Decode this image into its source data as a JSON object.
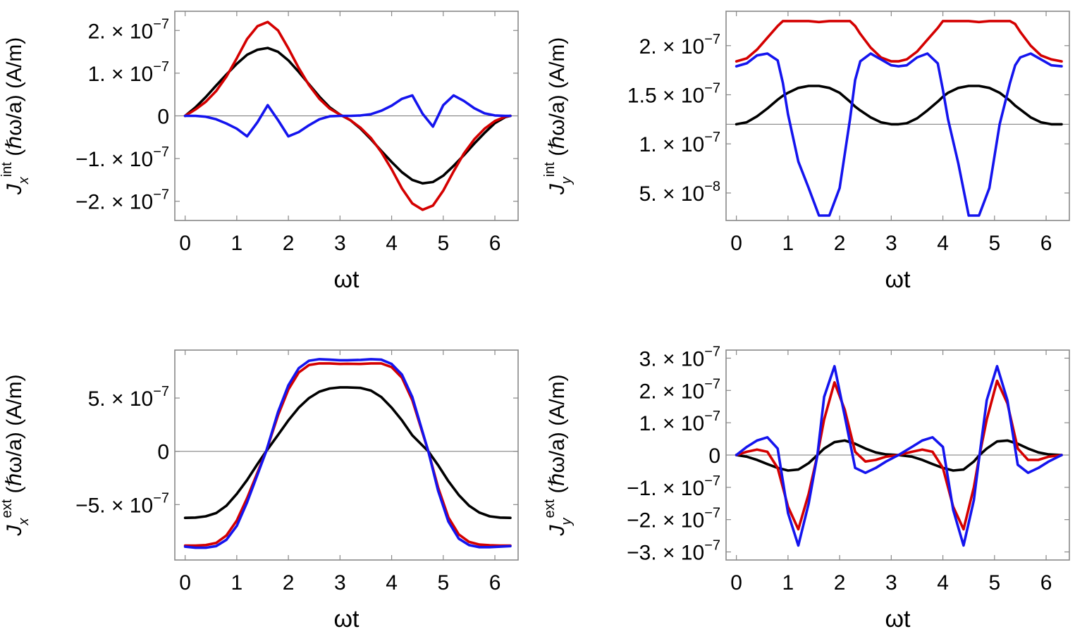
{
  "colors": {
    "red": "#d40000",
    "blue": "#1414ee",
    "black": "#000000"
  },
  "chart_data": [
    {
      "id": "jx-int",
      "type": "line",
      "xlabel": "ωt",
      "ylabel": {
        "symbol": "J",
        "sub": "x",
        "sup": "int",
        "rest": " (ℏω/a) (A/m)"
      },
      "xlim": [
        -0.2,
        6.45
      ],
      "ylim": [
        -2.45e-07,
        2.45e-07
      ],
      "xticks": [
        0,
        1,
        2,
        3,
        4,
        5,
        6
      ],
      "xtick_labels": [
        "0",
        "1",
        "2",
        "3",
        "4",
        "5",
        "6"
      ],
      "yticks": [
        {
          "v": 2e-07,
          "label": "2. × 10",
          "exp": "−7"
        },
        {
          "v": 1e-07,
          "label": "1. × 10",
          "exp": "−7"
        },
        {
          "v": 0,
          "label": "0",
          "exp": ""
        },
        {
          "v": -1e-07,
          "label": "−1. × 10",
          "exp": "−7"
        },
        {
          "v": -2e-07,
          "label": "−2. × 10",
          "exp": "−7"
        }
      ],
      "baseline": 0,
      "x": [
        0,
        0.2,
        0.4,
        0.6,
        0.8,
        1.0,
        1.2,
        1.4,
        1.6,
        1.8,
        2.0,
        2.2,
        2.4,
        2.6,
        2.8,
        3.0,
        3.2,
        3.4,
        3.6,
        3.8,
        4.0,
        4.2,
        4.4,
        4.6,
        4.8,
        5.0,
        5.2,
        5.4,
        5.6,
        5.8,
        6.0,
        6.2,
        6.3
      ],
      "series": [
        {
          "name": "black",
          "color": "#000000",
          "values": [
            0,
            2e-08,
            4.4e-08,
            7.1e-08,
            9.7e-08,
            1.22e-07,
            1.43e-07,
            1.55e-07,
            1.59e-07,
            1.5e-07,
            1.3e-07,
            1.03e-07,
            7.4e-08,
            4.5e-08,
            2e-08,
            3e-09,
            -1e-08,
            -3e-08,
            -5.5e-08,
            -8.2e-08,
            -1.08e-07,
            -1.32e-07,
            -1.5e-07,
            -1.58e-07,
            -1.55e-07,
            -1.4e-07,
            -1.17e-07,
            -9.2e-08,
            -6.5e-08,
            -4e-08,
            -1.7e-08,
            -3e-09,
            0
          ]
        },
        {
          "name": "red",
          "color": "#d40000",
          "values": [
            0,
            1.5e-08,
            3.3e-08,
            5.8e-08,
            9.2e-08,
            1.35e-07,
            1.8e-07,
            2.1e-07,
            2.2e-07,
            2e-07,
            1.58e-07,
            1.12e-07,
            7.2e-08,
            4e-08,
            1.7e-08,
            3e-09,
            -1e-08,
            -2.8e-08,
            -5.2e-08,
            -8.5e-08,
            -1.25e-07,
            -1.7e-07,
            -2.05e-07,
            -2.2e-07,
            -2.1e-07,
            -1.75e-07,
            -1.3e-07,
            -8.8e-08,
            -5.5e-08,
            -3e-08,
            -1.2e-08,
            -2e-09,
            0
          ]
        },
        {
          "name": "blue",
          "color": "#1414ee",
          "values": [
            0,
            0.0,
            -2e-09,
            -8e-09,
            -1.8e-08,
            -3e-08,
            -4.8e-08,
            -1.5e-08,
            2.5e-08,
            -1e-08,
            -4.8e-08,
            -3.8e-08,
            -2.2e-08,
            -8e-09,
            -1e-09,
            0,
            0,
            1e-09,
            4e-09,
            1.2e-08,
            2.4e-08,
            4e-08,
            4.8e-08,
            5e-09,
            -2.5e-08,
            2.5e-08,
            4.8e-08,
            3.5e-08,
            1.8e-08,
            6e-09,
            1e-09,
            0,
            0
          ]
        }
      ]
    },
    {
      "id": "jy-int",
      "type": "line",
      "xlabel": "ωt",
      "ylabel": {
        "symbol": "J",
        "sub": "y",
        "sup": "int",
        "rest": " (ℏω/a) (A/m)"
      },
      "xlim": [
        -0.2,
        6.45
      ],
      "ylim": [
        2.2e-08,
        2.35e-07
      ],
      "xticks": [
        0,
        1,
        2,
        3,
        4,
        5,
        6
      ],
      "xtick_labels": [
        "0",
        "1",
        "2",
        "3",
        "4",
        "5",
        "6"
      ],
      "yticks": [
        {
          "v": 2e-07,
          "label": "2. × 10",
          "exp": "−7"
        },
        {
          "v": 1.5e-07,
          "label": "1.5 × 10",
          "exp": "−7"
        },
        {
          "v": 1e-07,
          "label": "1. × 10",
          "exp": "−7"
        },
        {
          "v": 5e-08,
          "label": "5. × 10",
          "exp": "−8"
        }
      ],
      "baseline": 1.2e-07,
      "x": [
        0,
        0.2,
        0.4,
        0.6,
        0.8,
        0.9,
        1.0,
        1.2,
        1.4,
        1.6,
        1.8,
        2.0,
        2.2,
        2.3,
        2.4,
        2.6,
        2.8,
        3.0,
        3.14,
        3.3,
        3.5,
        3.7,
        3.9,
        4.0,
        4.1,
        4.3,
        4.5,
        4.7,
        4.9,
        5.1,
        5.3,
        5.4,
        5.5,
        5.7,
        5.9,
        6.1,
        6.3
      ],
      "series": [
        {
          "name": "black",
          "color": "#000000",
          "values": [
            1.2e-07,
            1.22e-07,
            1.28e-07,
            1.36e-07,
            1.45e-07,
            1.49e-07,
            1.52e-07,
            1.57e-07,
            1.59e-07,
            1.59e-07,
            1.57e-07,
            1.52e-07,
            1.43e-07,
            1.38e-07,
            1.34e-07,
            1.27e-07,
            1.22e-07,
            1.2e-07,
            1.2e-07,
            1.21e-07,
            1.26e-07,
            1.34e-07,
            1.43e-07,
            1.48e-07,
            1.52e-07,
            1.57e-07,
            1.59e-07,
            1.59e-07,
            1.57e-07,
            1.52e-07,
            1.44e-07,
            1.39e-07,
            1.35e-07,
            1.27e-07,
            1.22e-07,
            1.2e-07,
            1.2e-07
          ]
        },
        {
          "name": "red",
          "color": "#d40000",
          "values": [
            1.84e-07,
            1.87e-07,
            1.96e-07,
            2.08e-07,
            2.2e-07,
            2.25e-07,
            2.25e-07,
            2.25e-07,
            2.25e-07,
            2.24e-07,
            2.25e-07,
            2.25e-07,
            2.25e-07,
            2.2e-07,
            2.12e-07,
            1.98e-07,
            1.88e-07,
            1.84e-07,
            1.84e-07,
            1.86e-07,
            1.94e-07,
            2.06e-07,
            2.18e-07,
            2.25e-07,
            2.25e-07,
            2.25e-07,
            2.25e-07,
            2.24e-07,
            2.25e-07,
            2.25e-07,
            2.25e-07,
            2.22e-07,
            2.14e-07,
            2e-07,
            1.9e-07,
            1.86e-07,
            1.84e-07
          ]
        },
        {
          "name": "blue",
          "color": "#1414ee",
          "values": [
            1.79e-07,
            1.82e-07,
            1.9e-07,
            1.92e-07,
            1.85e-07,
            1.62e-07,
            1.3e-07,
            8.2e-08,
            5.5e-08,
            2.7e-08,
            2.7e-08,
            5.5e-08,
            1.25e-07,
            1.65e-07,
            1.84e-07,
            1.92e-07,
            1.86e-07,
            1.8e-07,
            1.79e-07,
            1.8e-07,
            1.88e-07,
            1.92e-07,
            1.82e-07,
            1.55e-07,
            1.25e-07,
            8e-08,
            2.7e-08,
            2.7e-08,
            5.5e-08,
            1.2e-07,
            1.62e-07,
            1.8e-07,
            1.88e-07,
            1.92e-07,
            1.86e-07,
            1.8e-07,
            1.79e-07
          ]
        }
      ]
    },
    {
      "id": "jx-ext",
      "type": "line",
      "xlabel": "ωt",
      "ylabel": {
        "symbol": "J",
        "sub": "x",
        "sup": "ext",
        "rest": " (ℏω/a) (A/m)"
      },
      "xlim": [
        -0.2,
        6.45
      ],
      "ylim": [
        -1.02e-06,
        9.5e-07
      ],
      "xticks": [
        0,
        1,
        2,
        3,
        4,
        5,
        6
      ],
      "xtick_labels": [
        "0",
        "1",
        "2",
        "3",
        "4",
        "5",
        "6"
      ],
      "yticks": [
        {
          "v": 5e-07,
          "label": "5. × 10",
          "exp": "−7"
        },
        {
          "v": 0,
          "label": "0",
          "exp": ""
        },
        {
          "v": -5e-07,
          "label": "−5. × 10",
          "exp": "−7"
        }
      ],
      "baseline": 0,
      "x": [
        0,
        0.2,
        0.4,
        0.6,
        0.8,
        1.0,
        1.2,
        1.4,
        1.57,
        1.8,
        2.0,
        2.2,
        2.4,
        2.6,
        2.8,
        3.0,
        3.14,
        3.4,
        3.6,
        3.8,
        4.0,
        4.2,
        4.4,
        4.71,
        4.9,
        5.1,
        5.3,
        5.5,
        5.7,
        5.9,
        6.1,
        6.3
      ],
      "series": [
        {
          "name": "black",
          "color": "#000000",
          "values": [
            -6.25e-07,
            -6.22e-07,
            -6.1e-07,
            -5.8e-07,
            -5.1e-07,
            -4e-07,
            -2.7e-07,
            -1.2e-07,
            0,
            1.55e-07,
            2.9e-07,
            4.1e-07,
            5e-07,
            5.6e-07,
            5.9e-07,
            6e-07,
            6e-07,
            5.95e-07,
            5.7e-07,
            5.1e-07,
            4.1e-07,
            2.9e-07,
            1.5e-07,
            0,
            -1.3e-07,
            -2.8e-07,
            -4.1e-07,
            -5.1e-07,
            -5.75e-07,
            -6.1e-07,
            -6.22e-07,
            -6.25e-07
          ]
        },
        {
          "name": "red",
          "color": "#d40000",
          "values": [
            -8.85e-07,
            -8.85e-07,
            -8.8e-07,
            -8.6e-07,
            -7.9e-07,
            -6.5e-07,
            -4.4e-07,
            -2e-07,
            0,
            3.4e-07,
            5.8e-07,
            7.4e-07,
            8.1e-07,
            8.25e-07,
            8.25e-07,
            8.2e-07,
            8.22e-07,
            8.2e-07,
            8.25e-07,
            8.25e-07,
            7.9e-07,
            6.9e-07,
            4.8e-07,
            0,
            -3.4e-07,
            -6.2e-07,
            -7.8e-07,
            -8.5e-07,
            -8.75e-07,
            -8.82e-07,
            -8.85e-07,
            -8.85e-07
          ]
        },
        {
          "name": "blue",
          "color": "#1414ee",
          "values": [
            -8.95e-07,
            -9.05e-07,
            -9.05e-07,
            -8.9e-07,
            -8.3e-07,
            -7e-07,
            -4.8e-07,
            -2.2e-07,
            0,
            3.7e-07,
            6.2e-07,
            7.8e-07,
            8.5e-07,
            8.65e-07,
            8.6e-07,
            8.55e-07,
            8.55e-07,
            8.58e-07,
            8.65e-07,
            8.6e-07,
            8.2e-07,
            7.2e-07,
            5.1e-07,
            0,
            -3.7e-07,
            -6.6e-07,
            -8.2e-07,
            -8.8e-07,
            -9e-07,
            -9e-07,
            -8.95e-07,
            -8.9e-07
          ]
        }
      ]
    },
    {
      "id": "jy-ext",
      "type": "line",
      "xlabel": "ωt",
      "ylabel": {
        "symbol": "J",
        "sub": "y",
        "sup": "ext",
        "rest": " (ℏω/a) (A/m)"
      },
      "xlim": [
        -0.2,
        6.45
      ],
      "ylim": [
        -3.25e-07,
        3.25e-07
      ],
      "xticks": [
        0,
        1,
        2,
        3,
        4,
        5,
        6
      ],
      "xtick_labels": [
        "0",
        "1",
        "2",
        "3",
        "4",
        "5",
        "6"
      ],
      "yticks": [
        {
          "v": 3e-07,
          "label": "3. × 10",
          "exp": "−7"
        },
        {
          "v": 2e-07,
          "label": "2. × 10",
          "exp": "−7"
        },
        {
          "v": 1e-07,
          "label": "1. × 10",
          "exp": "−7"
        },
        {
          "v": 0,
          "label": "0",
          "exp": ""
        },
        {
          "v": -1e-07,
          "label": "−1. × 10",
          "exp": "−7"
        },
        {
          "v": -2e-07,
          "label": "−2. × 10",
          "exp": "−7"
        },
        {
          "v": -3e-07,
          "label": "−3. × 10",
          "exp": "−7"
        }
      ],
      "baseline": 0,
      "x": [
        0,
        0.2,
        0.4,
        0.6,
        0.8,
        1.0,
        1.2,
        1.4,
        1.57,
        1.7,
        1.9,
        2.1,
        2.3,
        2.5,
        2.7,
        2.9,
        3.14,
        3.4,
        3.6,
        3.8,
        4.0,
        4.2,
        4.4,
        4.6,
        4.71,
        4.85,
        5.05,
        5.25,
        5.45,
        5.65,
        5.85,
        6.05,
        6.3
      ],
      "series": [
        {
          "name": "black",
          "color": "#000000",
          "values": [
            0,
            -5e-09,
            -1.5e-08,
            -2.8e-08,
            -4e-08,
            -4.8e-08,
            -4.5e-08,
            -2.5e-08,
            0,
            2e-08,
            4e-08,
            4.5e-08,
            3.5e-08,
            2e-08,
            8e-09,
            2e-09,
            0,
            -5e-09,
            -1.5e-08,
            -2.8e-08,
            -4e-08,
            -4.8e-08,
            -4.5e-08,
            -2e-08,
            0,
            2e-08,
            4.2e-08,
            4.5e-08,
            3.5e-08,
            2e-08,
            8e-09,
            2e-09,
            0
          ]
        },
        {
          "name": "red",
          "color": "#d40000",
          "values": [
            0,
            1e-08,
            1.7e-08,
            1e-08,
            -4e-08,
            -1.6e-07,
            -2.3e-07,
            -1.2e-07,
            0,
            1.1e-07,
            2.25e-07,
            1.4e-07,
            1e-08,
            -2e-08,
            -1.5e-08,
            -5e-09,
            0,
            1e-08,
            1.7e-08,
            1e-08,
            -4e-08,
            -1.6e-07,
            -2.3e-07,
            -1e-07,
            0,
            1.1e-07,
            2.3e-07,
            1.6e-07,
            2e-08,
            -1.5e-08,
            -1.5e-08,
            -5e-09,
            0
          ]
        },
        {
          "name": "blue",
          "color": "#1414ee",
          "values": [
            0,
            2.5e-08,
            4.5e-08,
            5.5e-08,
            2e-08,
            -1.8e-07,
            -2.8e-07,
            -1.5e-07,
            0,
            1.8e-07,
            2.75e-07,
            1.2e-07,
            -4e-08,
            -5.5e-08,
            -4e-08,
            -2e-08,
            0,
            2.5e-08,
            4.5e-08,
            5.5e-08,
            2.5e-08,
            -1.7e-07,
            -2.8e-07,
            -1.4e-07,
            0,
            1.7e-07,
            2.75e-07,
            1.7e-07,
            -3e-08,
            -5.5e-08,
            -4e-08,
            -2e-08,
            0
          ]
        }
      ]
    }
  ]
}
